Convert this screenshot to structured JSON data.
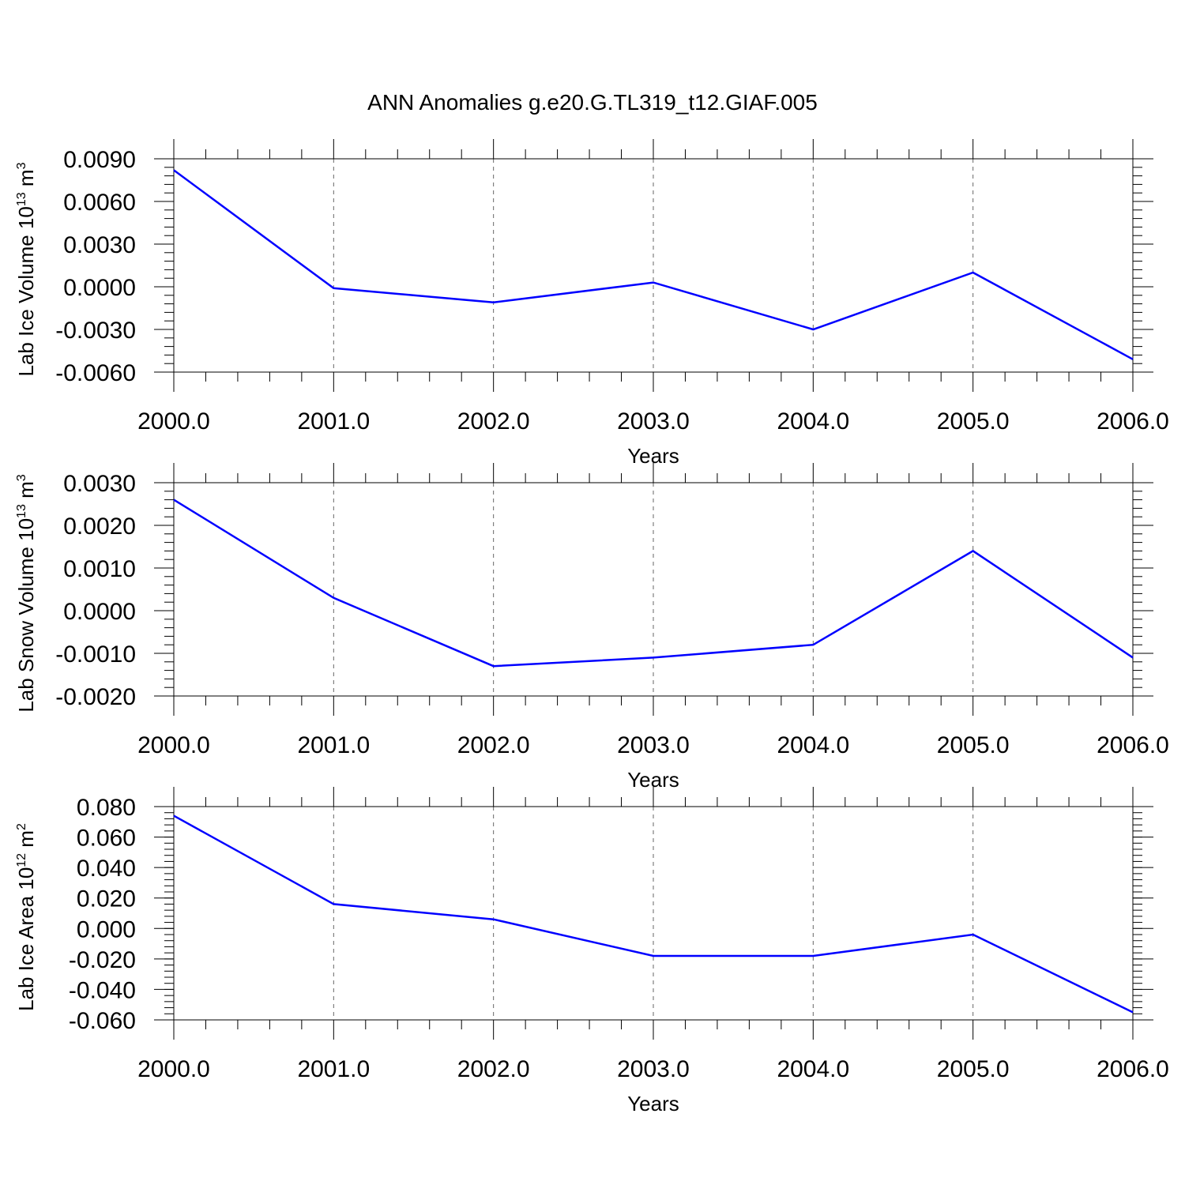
{
  "title": "ANN Anomalies g.e20.G.TL319_t12.GIAF.005",
  "chart_data": [
    {
      "type": "line",
      "ylabel_text": "Lab Ice Volume 10",
      "ylabel_exp": "13",
      "ylabel_unit": " m",
      "ylabel_unit_exp": "3",
      "xlabel": "Years",
      "x": [
        2000,
        2001,
        2002,
        2003,
        2004,
        2005,
        2006
      ],
      "xticks": [
        "2000.0",
        "2001.0",
        "2002.0",
        "2003.0",
        "2004.0",
        "2005.0",
        "2006.0"
      ],
      "values": [
        0.0082,
        -0.0001,
        -0.0011,
        0.0003,
        -0.003,
        0.001,
        -0.0051
      ],
      "ylim": [
        -0.006,
        0.009
      ],
      "yticks": [
        0.009,
        0.006,
        0.003,
        0.0,
        -0.003,
        -0.006
      ],
      "ytick_labels": [
        "0.0090",
        "0.0060",
        "0.0030",
        "0.0000",
        "-0.0030",
        "-0.0060"
      ],
      "line_color": "#0000ff",
      "grid": "vertical dashed"
    },
    {
      "type": "line",
      "ylabel_text": "Lab Snow Volume 10",
      "ylabel_exp": "13",
      "ylabel_unit": " m",
      "ylabel_unit_exp": "3",
      "xlabel": "Years",
      "x": [
        2000,
        2001,
        2002,
        2003,
        2004,
        2005,
        2006
      ],
      "xticks": [
        "2000.0",
        "2001.0",
        "2002.0",
        "2003.0",
        "2004.0",
        "2005.0",
        "2006.0"
      ],
      "values": [
        0.0026,
        0.0003,
        -0.0013,
        -0.0011,
        -0.0008,
        0.0014,
        -0.0011
      ],
      "ylim": [
        -0.002,
        0.003
      ],
      "yticks": [
        0.003,
        0.002,
        0.001,
        0.0,
        -0.001,
        -0.002
      ],
      "ytick_labels": [
        "0.0030",
        "0.0020",
        "0.0010",
        "0.0000",
        "-0.0010",
        "-0.0020"
      ],
      "line_color": "#0000ff",
      "grid": "vertical dashed"
    },
    {
      "type": "line",
      "ylabel_text": "Lab Ice Area 10",
      "ylabel_exp": "12",
      "ylabel_unit": " m",
      "ylabel_unit_exp": "2",
      "xlabel": "Years",
      "x": [
        2000,
        2001,
        2002,
        2003,
        2004,
        2005,
        2006
      ],
      "xticks": [
        "2000.0",
        "2001.0",
        "2002.0",
        "2003.0",
        "2004.0",
        "2005.0",
        "2006.0"
      ],
      "values": [
        0.074,
        0.016,
        0.006,
        -0.018,
        -0.018,
        -0.004,
        -0.055
      ],
      "ylim": [
        -0.06,
        0.08
      ],
      "yticks": [
        0.08,
        0.06,
        0.04,
        0.02,
        0.0,
        -0.02,
        -0.04,
        -0.06
      ],
      "ytick_labels": [
        "0.080",
        "0.060",
        "0.040",
        "0.020",
        "0.000",
        "-0.020",
        "-0.040",
        "-0.060"
      ],
      "line_color": "#0000ff",
      "grid": "vertical dashed"
    }
  ]
}
